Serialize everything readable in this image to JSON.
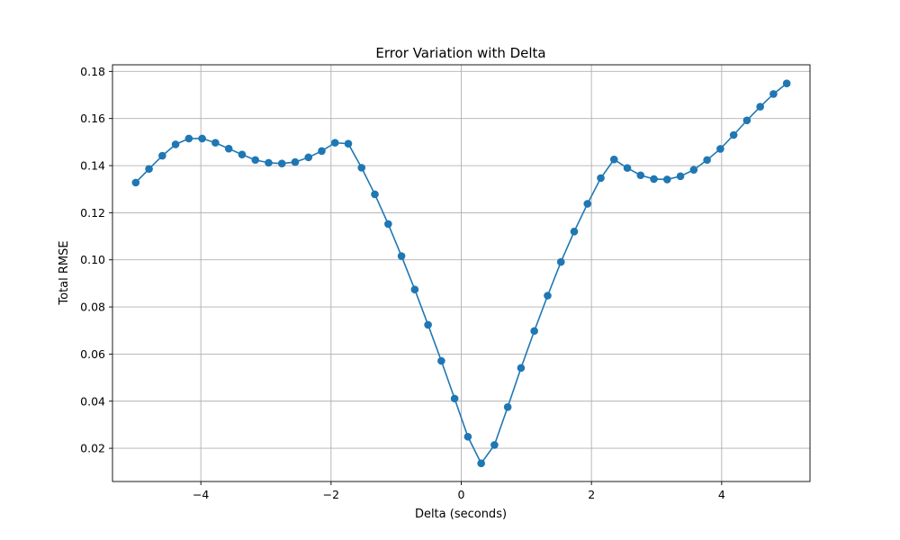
{
  "chart_data": {
    "type": "line",
    "title": "Error Variation with Delta",
    "xlabel": "Delta (seconds)",
    "ylabel": "Total RMSE",
    "xlim": [
      -5.357,
      5.357
    ],
    "ylim": [
      0.0059,
      0.1828
    ],
    "xticks": [
      -4,
      -2,
      0,
      2,
      4
    ],
    "xtick_labels": [
      "−4",
      "−2",
      "0",
      "2",
      "4"
    ],
    "yticks": [
      0.02,
      0.04,
      0.06,
      0.08,
      0.1,
      0.12,
      0.14,
      0.16,
      0.18
    ],
    "ytick_labels": [
      "0.02",
      "0.04",
      "0.06",
      "0.08",
      "0.10",
      "0.12",
      "0.14",
      "0.16",
      "0.18"
    ],
    "grid": true,
    "marker": "circle",
    "color": "#1f77b4",
    "series": [
      {
        "x": [
          -5.0,
          -4.796,
          -4.592,
          -4.388,
          -4.184,
          -3.98,
          -3.776,
          -3.571,
          -3.367,
          -3.163,
          -2.959,
          -2.755,
          -2.551,
          -2.347,
          -2.143,
          -1.939,
          -1.735,
          -1.531,
          -1.327,
          -1.122,
          -0.918,
          -0.714,
          -0.51,
          -0.306,
          -0.102,
          0.102,
          0.306,
          0.51,
          0.714,
          0.918,
          1.122,
          1.327,
          1.531,
          1.735,
          1.939,
          2.143,
          2.347,
          2.551,
          2.755,
          2.959,
          3.163,
          3.367,
          3.571,
          3.776,
          3.98,
          4.184,
          4.388,
          4.592,
          4.796,
          5.0
        ],
        "y": [
          0.1328,
          0.1386,
          0.1442,
          0.149,
          0.1515,
          0.1515,
          0.1497,
          0.1472,
          0.1447,
          0.1424,
          0.1412,
          0.1409,
          0.1415,
          0.1435,
          0.1462,
          0.1497,
          0.1493,
          0.1391,
          0.1278,
          0.1152,
          0.1016,
          0.0874,
          0.0724,
          0.0571,
          0.0411,
          0.0249,
          0.0136,
          0.0214,
          0.0375,
          0.0541,
          0.0698,
          0.0848,
          0.0991,
          0.112,
          0.1238,
          0.1347,
          0.1426,
          0.139,
          0.1359,
          0.1343,
          0.1341,
          0.1355,
          0.1382,
          0.1424,
          0.1471,
          0.153,
          0.1592,
          0.165,
          0.1704,
          0.1749
        ]
      }
    ]
  }
}
